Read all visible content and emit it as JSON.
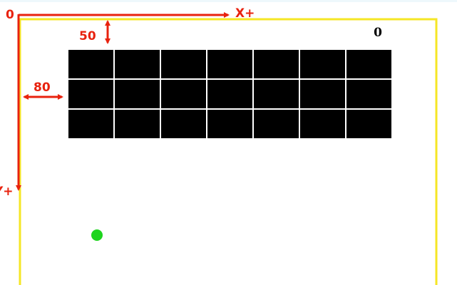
{
  "game": {
    "score": "0",
    "brick_rows": 3,
    "brick_columns": 7,
    "colors": {
      "border": "#f5e625",
      "brick": "#000000",
      "ball": "#1ed41e",
      "annotation": "#e8220e"
    }
  },
  "annotations": {
    "origin": "0",
    "x_axis": "X+",
    "y_axis": "Y+",
    "top_offset": "50",
    "left_offset": "80"
  }
}
